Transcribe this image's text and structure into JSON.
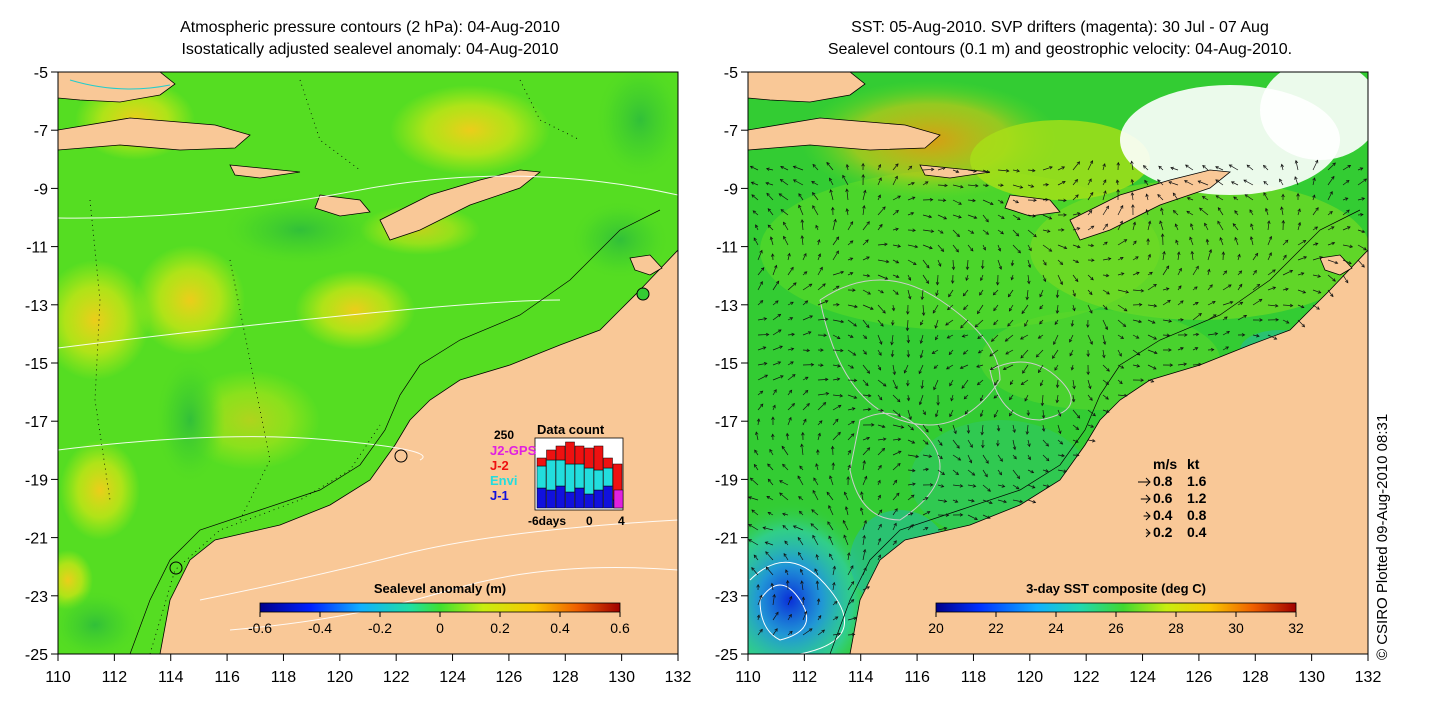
{
  "left_panel": {
    "title_line1": "Atmospheric pressure contours (2 hPa): 04-Aug-2010",
    "title_line2": "Isostatically adjusted sealevel anomaly: 04-Aug-2010",
    "colorbar": {
      "label": "Sealevel anomaly (m)",
      "ticks": [
        "-0.6",
        "-0.4",
        "-0.2",
        "0",
        "0.2",
        "0.4",
        "0.6"
      ],
      "range": [
        -0.6,
        0.6
      ]
    },
    "data_count": {
      "title": "Data count",
      "ymax_label": "250",
      "legend": [
        {
          "label": "J2-GPS",
          "color": "#e020e0"
        },
        {
          "label": "J-2",
          "color": "#ee1111"
        },
        {
          "label": "Envi",
          "color": "#22dddd"
        },
        {
          "label": "J-1",
          "color": "#1111dd"
        }
      ],
      "x_ticks": [
        "-6days",
        "0",
        "4"
      ]
    }
  },
  "right_panel": {
    "title_line1": "SST: 05-Aug-2010. SVP drifters (magenta): 30 Jul - 07 Aug",
    "title_line2": "Sealevel contours (0.1 m) and geostrophic velocity: 04-Aug-2010.",
    "colorbar": {
      "label": "3-day SST composite (deg C)",
      "ticks": [
        "20",
        "22",
        "24",
        "26",
        "28",
        "30",
        "32"
      ],
      "range": [
        20,
        32
      ]
    },
    "velocity_legend": {
      "header_ms": "m/s",
      "header_kt": "kt",
      "rows": [
        {
          "ms": "0.8",
          "kt": "1.6"
        },
        {
          "ms": "0.6",
          "kt": "1.2"
        },
        {
          "ms": "0.4",
          "kt": "0.8"
        },
        {
          "ms": "0.2",
          "kt": "0.4"
        }
      ]
    }
  },
  "axes": {
    "lat_ticks": [
      "-5",
      "-7",
      "-9",
      "-11",
      "-13",
      "-15",
      "-17",
      "-19",
      "-21",
      "-23",
      "-25"
    ],
    "lon_ticks": [
      "110",
      "112",
      "114",
      "116",
      "118",
      "120",
      "122",
      "124",
      "126",
      "128",
      "130",
      "132"
    ],
    "lat_range": [
      -25,
      -5
    ],
    "lon_range": [
      110,
      132
    ]
  },
  "credit": "© CSIRO Plotted 09-Aug-2010 08:31",
  "colors": {
    "land": "#f9c897",
    "anomaly_green": "#55dd22",
    "anomaly_yellow": "#ccee11",
    "sst_green": "#33cc33"
  }
}
